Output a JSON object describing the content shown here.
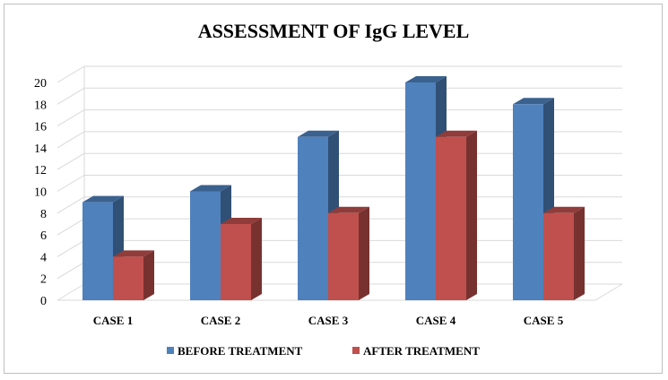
{
  "chart_data": {
    "type": "bar",
    "title": "ASSESSMENT  OF IgG LEVEL",
    "categories": [
      "CASE 1",
      "CASE 2",
      "CASE 3",
      "CASE 4",
      "CASE 5"
    ],
    "series": [
      {
        "name": "BEFORE TREATMENT",
        "values": [
          9,
          10,
          15,
          20,
          18
        ],
        "color": "#4f81bd"
      },
      {
        "name": "AFTER TREATMENT",
        "values": [
          4,
          7,
          8,
          15,
          8
        ],
        "color": "#c0504d"
      }
    ],
    "ylim": [
      0,
      20
    ],
    "yticks": [
      "0",
      "2",
      "4",
      "6",
      "8",
      "10",
      "12",
      "14",
      "16",
      "18",
      "20"
    ],
    "grid": true,
    "legend_position": "bottom",
    "style": "3d-column"
  }
}
